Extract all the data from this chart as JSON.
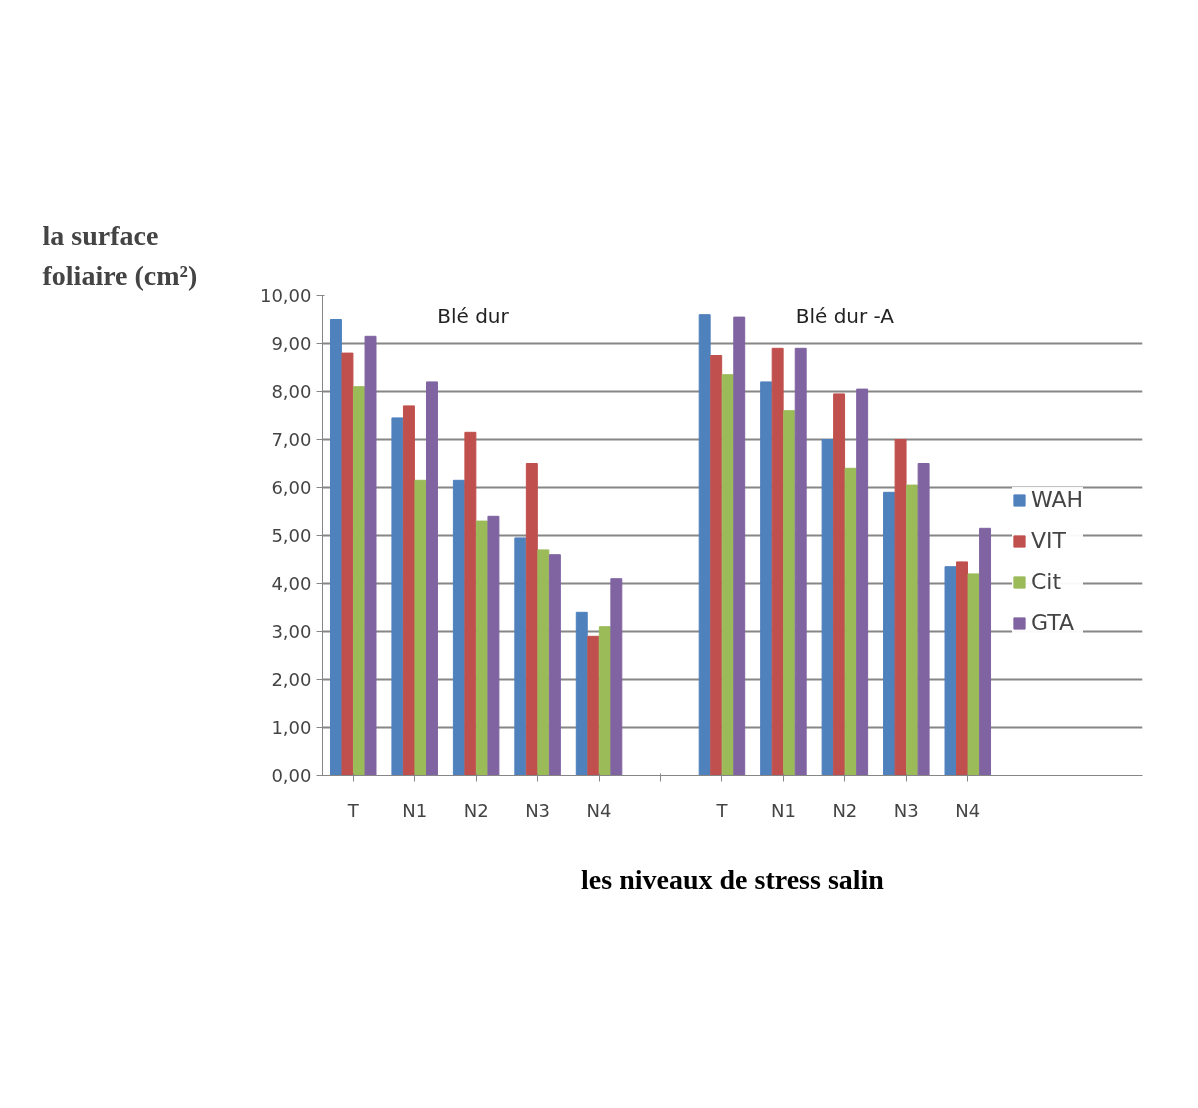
{
  "chart_data": {
    "type": "bar",
    "xlabel": "les niveaux de stress salin",
    "ylabel": "la surface foliaire (cm²)",
    "annotations": [
      "Blé  dur",
      "Blé dur -A"
    ],
    "categories": [
      "T",
      "N1",
      "N2",
      "N3",
      "N4",
      null,
      "T",
      "N1",
      "N2",
      "N3",
      "N4"
    ],
    "series": [
      {
        "name": "WAH",
        "color": "#4f81bd",
        "values": [
          9.5,
          7.45,
          6.15,
          4.95,
          3.4,
          null,
          9.6,
          8.2,
          7.0,
          5.9,
          4.35
        ]
      },
      {
        "name": "VIT",
        "color": "#c0504d",
        "values": [
          8.8,
          7.7,
          7.15,
          6.5,
          2.9,
          null,
          8.75,
          8.9,
          7.95,
          7.0,
          4.45
        ]
      },
      {
        "name": "Cit",
        "color": "#9bbb59",
        "values": [
          8.1,
          6.15,
          5.3,
          4.7,
          3.1,
          null,
          8.35,
          7.6,
          6.4,
          6.05,
          4.2
        ]
      },
      {
        "name": "GTA",
        "color": "#8064a2",
        "values": [
          9.15,
          8.2,
          5.4,
          4.6,
          4.1,
          null,
          9.55,
          8.9,
          8.05,
          6.5,
          5.15
        ]
      }
    ],
    "ylim": [
      0,
      10
    ],
    "yticks": [
      {
        "value": 0,
        "label": "0,00"
      },
      {
        "value": 1,
        "label": "1,00"
      },
      {
        "value": 2,
        "label": "2,00"
      },
      {
        "value": 3,
        "label": "3,00"
      },
      {
        "value": 4,
        "label": "4,00"
      },
      {
        "value": 5,
        "label": "5,00"
      },
      {
        "value": 6,
        "label": "6,00"
      },
      {
        "value": 7,
        "label": "7,00"
      },
      {
        "value": 8,
        "label": "8,00"
      },
      {
        "value": 9,
        "label": "9,00"
      },
      {
        "value": 10,
        "label": "10,00"
      }
    ],
    "grid": "y",
    "legend": "right"
  }
}
